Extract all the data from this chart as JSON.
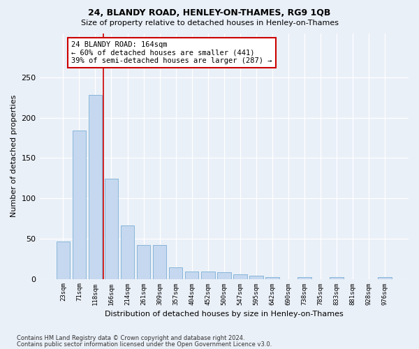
{
  "title1": "24, BLANDY ROAD, HENLEY-ON-THAMES, RG9 1QB",
  "title2": "Size of property relative to detached houses in Henley-on-Thames",
  "xlabel": "Distribution of detached houses by size in Henley-on-Thames",
  "ylabel": "Number of detached properties",
  "categories": [
    "23sqm",
    "71sqm",
    "118sqm",
    "166sqm",
    "214sqm",
    "261sqm",
    "309sqm",
    "357sqm",
    "404sqm",
    "452sqm",
    "500sqm",
    "547sqm",
    "595sqm",
    "642sqm",
    "690sqm",
    "738sqm",
    "785sqm",
    "833sqm",
    "881sqm",
    "928sqm",
    "976sqm"
  ],
  "values": [
    46,
    184,
    228,
    124,
    66,
    42,
    42,
    14,
    9,
    9,
    8,
    6,
    4,
    2,
    0,
    2,
    0,
    2,
    0,
    0,
    2
  ],
  "bar_color": "#c5d8ef",
  "bar_edge_color": "#7bafd4",
  "vline_x_idx": 2.5,
  "vline_color": "#cc0000",
  "annotation_text": "24 BLANDY ROAD: 164sqm\n← 60% of detached houses are smaller (441)\n39% of semi-detached houses are larger (287) →",
  "annotation_box_color": "#ffffff",
  "annotation_box_edge": "#cc0000",
  "ylim": [
    0,
    305
  ],
  "yticks": [
    0,
    50,
    100,
    150,
    200,
    250
  ],
  "bg_color": "#eaf0f8",
  "footnote1": "Contains HM Land Registry data © Crown copyright and database right 2024.",
  "footnote2": "Contains public sector information licensed under the Open Government Licence v3.0."
}
